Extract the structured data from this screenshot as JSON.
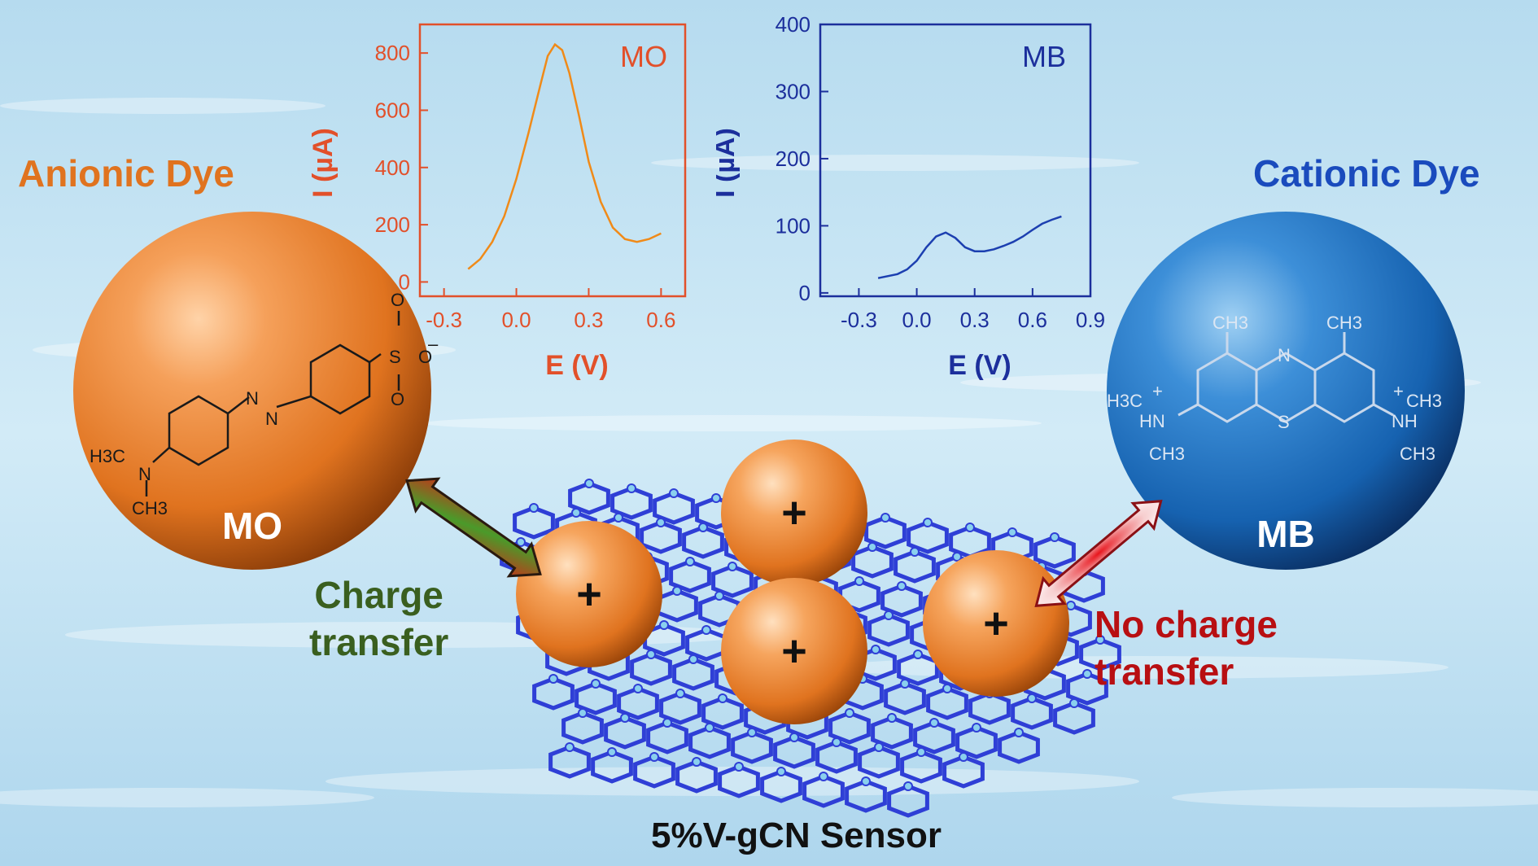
{
  "labels": {
    "anionic": "Anionic Dye",
    "cationic": "Cationic Dye",
    "charge": [
      "Charge",
      "transfer"
    ],
    "no_charge": [
      "No charge",
      "transfer"
    ],
    "sensor": "5%V-gCN Sensor",
    "mo_sphere": "MO",
    "mb_sphere": "MB",
    "plus": "+"
  },
  "colors": {
    "mo_orange": "#e0731f",
    "mb_blue": "#1a4bbd",
    "charge_green": "#3a5f1f",
    "no_charge_red": "#b80f12",
    "mo_axis": "#e2502a",
    "mb_axis": "#1c2f9c"
  },
  "chart_data": [
    {
      "type": "line",
      "series": [
        {
          "name": "MO",
          "x": [
            -0.2,
            -0.15,
            -0.1,
            -0.05,
            0.0,
            0.05,
            0.1,
            0.13,
            0.16,
            0.19,
            0.22,
            0.26,
            0.3,
            0.35,
            0.4,
            0.45,
            0.5,
            0.55,
            0.6
          ],
          "y": [
            45,
            80,
            140,
            230,
            360,
            520,
            690,
            790,
            830,
            810,
            730,
            580,
            420,
            280,
            190,
            150,
            140,
            150,
            170
          ]
        }
      ],
      "xlabel": "E (V)",
      "ylabel": "I (µA)",
      "xlim": [
        -0.4,
        0.7
      ],
      "ylim": [
        -50,
        900
      ],
      "xticks": [
        -0.3,
        0.0,
        0.3,
        0.6
      ],
      "xtick_labels": [
        "-0.3",
        "0.0",
        "0.3",
        "0.6"
      ],
      "yticks": [
        0,
        200,
        400,
        600,
        800
      ],
      "ytick_labels": [
        "0",
        "200",
        "400",
        "600",
        "800"
      ],
      "annotation": "MO",
      "grid": false
    },
    {
      "type": "line",
      "series": [
        {
          "name": "MB",
          "x": [
            -0.2,
            -0.1,
            -0.05,
            0.0,
            0.05,
            0.1,
            0.15,
            0.2,
            0.25,
            0.3,
            0.35,
            0.4,
            0.45,
            0.5,
            0.55,
            0.6,
            0.65,
            0.7,
            0.75
          ],
          "y": [
            22,
            28,
            35,
            48,
            68,
            84,
            90,
            82,
            68,
            62,
            62,
            65,
            70,
            76,
            84,
            94,
            103,
            109,
            114
          ]
        }
      ],
      "xlabel": "E (V)",
      "ylabel": "I (µA)",
      "xlim": [
        -0.5,
        0.9
      ],
      "ylim": [
        -5,
        400
      ],
      "xticks": [
        -0.3,
        0.0,
        0.3,
        0.6,
        0.9
      ],
      "xtick_labels": [
        "-0.3",
        "0.0",
        "0.3",
        "0.6",
        "0.9"
      ],
      "yticks": [
        0,
        100,
        200,
        300,
        400
      ],
      "ytick_labels": [
        "0",
        "100",
        "200",
        "300",
        "400"
      ],
      "annotation": "MB",
      "grid": false
    }
  ],
  "molecules": {
    "mo": {
      "sulfonate": [
        "S",
        "O",
        "O",
        "O",
        "–"
      ],
      "azo": [
        "N",
        "N"
      ],
      "amine": [
        "H3C",
        "N",
        "CH3"
      ]
    },
    "mb": {
      "methyls": [
        "CH3",
        "CH3"
      ],
      "ring": [
        "N",
        "S"
      ],
      "left_amine": [
        "H3C",
        "+",
        "HN",
        "CH3"
      ],
      "right_amine": [
        "+",
        "CH3",
        "NH",
        "CH3"
      ]
    }
  }
}
